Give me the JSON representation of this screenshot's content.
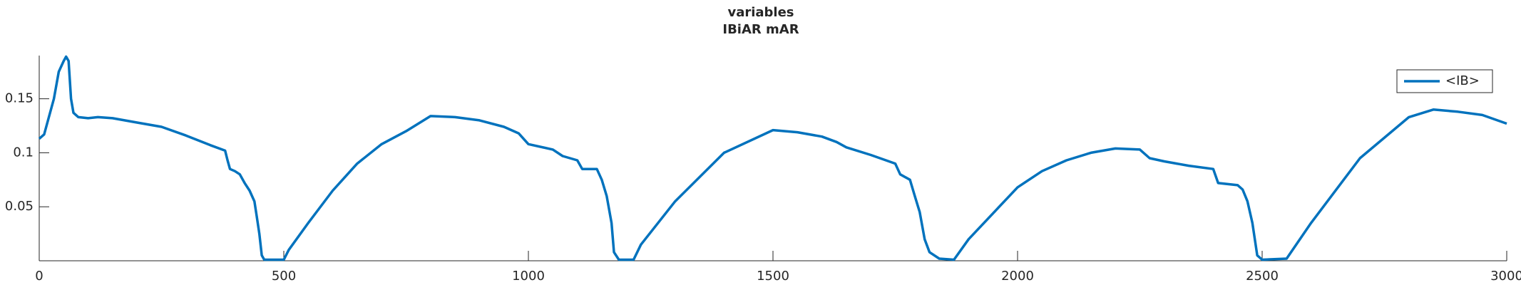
{
  "chart_data": {
    "type": "line",
    "title": "variables",
    "subtitle": "IBiAR mAR",
    "x": [
      0,
      10,
      30,
      40,
      50,
      55,
      60,
      65,
      70,
      80,
      100,
      120,
      150,
      200,
      250,
      300,
      350,
      380,
      385,
      390,
      400,
      410,
      420,
      430,
      440,
      445,
      450,
      455,
      460,
      500,
      510,
      550,
      600,
      650,
      700,
      750,
      800,
      850,
      900,
      950,
      980,
      1000,
      1050,
      1070,
      1100,
      1110,
      1140,
      1150,
      1160,
      1170,
      1175,
      1185,
      1215,
      1230,
      1300,
      1400,
      1500,
      1550,
      1600,
      1630,
      1650,
      1700,
      1750,
      1760,
      1780,
      1790,
      1800,
      1810,
      1820,
      1840,
      1870,
      1900,
      2000,
      2050,
      2100,
      2150,
      2200,
      2250,
      2270,
      2300,
      2350,
      2400,
      2410,
      2450,
      2460,
      2470,
      2480,
      2490,
      2500,
      2550,
      2600,
      2700,
      2800,
      2850,
      2900,
      2950,
      3000
    ],
    "series": [
      {
        "name": "<IB>",
        "color": "#0072bd",
        "values": [
          0.113,
          0.117,
          0.15,
          0.175,
          0.185,
          0.189,
          0.185,
          0.15,
          0.137,
          0.133,
          0.132,
          0.133,
          0.132,
          0.128,
          0.124,
          0.116,
          0.107,
          0.102,
          0.093,
          0.085,
          0.083,
          0.08,
          0.072,
          0.065,
          0.055,
          0.04,
          0.025,
          0.005,
          0.001,
          0.001,
          0.01,
          0.035,
          0.065,
          0.09,
          0.108,
          0.12,
          0.134,
          0.133,
          0.13,
          0.124,
          0.118,
          0.108,
          0.103,
          0.097,
          0.093,
          0.085,
          0.085,
          0.075,
          0.06,
          0.035,
          0.008,
          0.001,
          0.001,
          0.015,
          0.055,
          0.1,
          0.121,
          0.119,
          0.115,
          0.11,
          0.105,
          0.098,
          0.09,
          0.08,
          0.075,
          0.06,
          0.045,
          0.02,
          0.008,
          0.002,
          0.001,
          0.02,
          0.068,
          0.083,
          0.093,
          0.1,
          0.104,
          0.103,
          0.095,
          0.092,
          0.088,
          0.085,
          0.072,
          0.07,
          0.066,
          0.055,
          0.035,
          0.005,
          0.001,
          0.002,
          0.035,
          0.095,
          0.133,
          0.14,
          0.138,
          0.135,
          0.127
        ]
      }
    ],
    "xlim": [
      0,
      3000
    ],
    "ylim": [
      0,
      0.19
    ],
    "xticks": [
      0,
      500,
      1000,
      1500,
      2000,
      2500,
      3000
    ],
    "yticks": [
      0.05,
      0.1,
      0.15
    ],
    "legend": "upper right"
  }
}
